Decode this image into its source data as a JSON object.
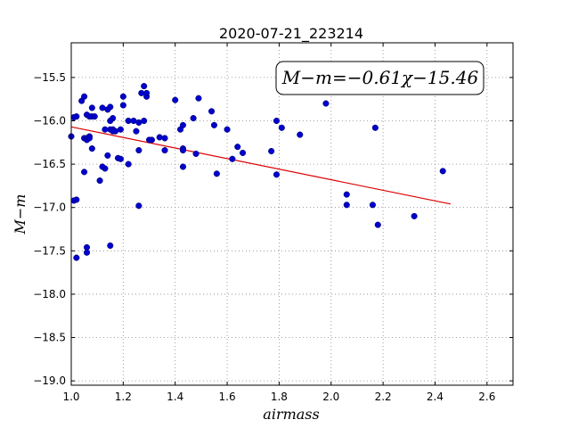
{
  "chart_data": {
    "type": "scatter",
    "title": "2020-07-21_223214",
    "xlabel": "airmass",
    "ylabel": "M−m",
    "xlim": [
      1.0,
      2.7
    ],
    "ylim": [
      -19.05,
      -15.1
    ],
    "y_inverted": true,
    "grid": true,
    "xticks": [
      1.0,
      1.2,
      1.4,
      1.6,
      1.8,
      2.0,
      2.2,
      2.4,
      2.6
    ],
    "xtick_labels": [
      "1.0",
      "1.2",
      "1.4",
      "1.6",
      "1.8",
      "2.0",
      "2.2",
      "2.4",
      "2.6"
    ],
    "yticks": [
      -15.5,
      -16.0,
      -16.5,
      -17.0,
      -17.5,
      -18.0,
      -18.5,
      -19.0
    ],
    "ytick_labels": [
      "−15.5",
      "−16.0",
      "−16.5",
      "−17.0",
      "−17.5",
      "−18.0",
      "−18.5",
      "−19.0"
    ],
    "annotation": "M−m=−0.61χ−15.46",
    "annotation_position": "top-right",
    "colors": {
      "points": "#0000cc",
      "fit": "#dd0000",
      "grid": "#888888"
    },
    "series": [
      {
        "type": "scatter",
        "x": [
          1.0,
          1.01,
          1.02,
          1.01,
          1.04,
          1.05,
          1.06,
          1.07,
          1.08,
          1.09,
          1.05,
          1.06,
          1.07,
          1.12,
          1.14,
          1.15,
          1.16,
          1.15,
          1.16,
          1.17,
          1.19,
          1.2,
          1.2,
          1.13,
          1.15,
          1.16,
          1.18,
          1.22,
          1.24,
          1.26,
          1.25,
          1.27,
          1.28,
          1.29,
          1.3,
          1.28,
          1.29,
          1.31,
          1.34,
          1.36,
          1.4,
          1.42,
          1.43,
          1.47,
          1.49,
          1.43,
          1.43,
          1.54,
          1.55,
          1.6,
          1.64,
          1.62,
          1.66,
          1.56,
          1.48,
          1.43,
          1.36,
          1.26,
          1.22,
          1.19,
          1.14,
          1.13,
          1.12,
          1.11,
          1.05,
          1.06,
          1.02,
          1.02,
          1.06,
          1.08,
          1.08,
          1.15,
          1.26,
          1.06,
          1.07,
          1.77,
          1.79,
          1.81,
          1.79,
          1.88,
          1.98,
          2.06,
          2.06,
          2.16,
          2.17,
          2.18,
          2.32,
          2.43
        ],
        "y": [
          -16.18,
          -15.96,
          -15.95,
          -16.92,
          -15.77,
          -15.72,
          -15.93,
          -15.95,
          -15.95,
          -15.95,
          -16.2,
          -16.2,
          -16.18,
          -15.85,
          -15.87,
          -15.84,
          -15.97,
          -16.0,
          -16.1,
          -16.12,
          -16.1,
          -15.82,
          -15.72,
          -16.1,
          -16.1,
          -16.12,
          -16.43,
          -16.0,
          -16.0,
          -16.02,
          -16.12,
          -15.68,
          -15.6,
          -15.72,
          -16.22,
          -16.0,
          -15.68,
          -16.22,
          -16.19,
          -16.2,
          -15.76,
          -16.1,
          -16.05,
          -15.97,
          -15.74,
          -16.32,
          -16.34,
          -15.89,
          -16.05,
          -16.1,
          -16.3,
          -16.44,
          -16.37,
          -16.61,
          -16.38,
          -16.53,
          -16.34,
          -16.34,
          -16.5,
          -16.44,
          -16.4,
          -16.55,
          -16.53,
          -16.69,
          -16.59,
          -17.52,
          -17.58,
          -16.91,
          -17.46,
          -16.32,
          -15.85,
          -17.44,
          -16.98,
          -16.22,
          -16.2,
          -16.35,
          -16.62,
          -16.08,
          -16.0,
          -16.16,
          -15.8,
          -16.85,
          -16.97,
          -16.97,
          -16.08,
          -17.2,
          -17.1,
          -16.58
        ]
      },
      {
        "type": "line",
        "x": [
          1.0,
          2.46
        ],
        "y": [
          -16.07,
          -16.96
        ]
      }
    ]
  }
}
